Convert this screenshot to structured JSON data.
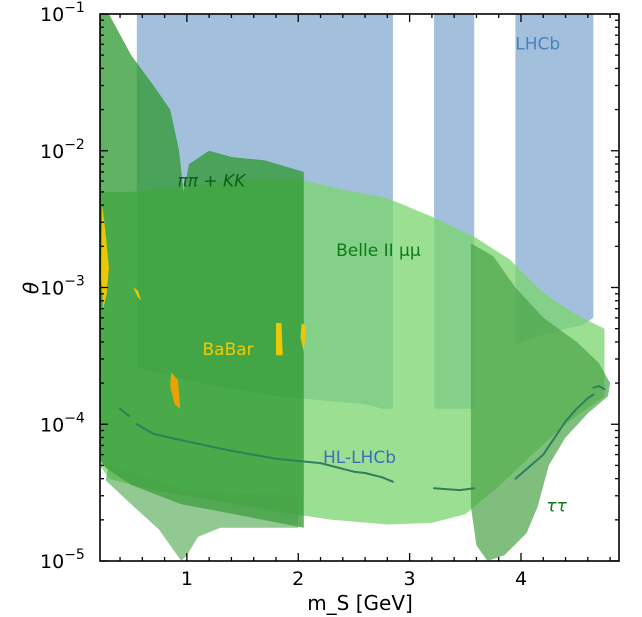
{
  "chart_data": {
    "type": "area",
    "title": "",
    "xlabel": "m_S [GeV]",
    "ylabel": "θ",
    "xlim": [
      0.22,
      4.88
    ],
    "ylim": [
      1e-05,
      0.1
    ],
    "yscale": "log",
    "x_ticks": [
      {
        "value": 1,
        "label": "1"
      },
      {
        "value": 2,
        "label": "2"
      },
      {
        "value": 3,
        "label": "3"
      },
      {
        "value": 4,
        "label": "4"
      }
    ],
    "y_ticks": [
      {
        "value": 1e-05,
        "base": "10",
        "exp": "−5"
      },
      {
        "value": 0.0001,
        "base": "10",
        "exp": "−4"
      },
      {
        "value": 0.001,
        "base": "10",
        "exp": "−3"
      },
      {
        "value": 0.01,
        "base": "10",
        "exp": "−2"
      },
      {
        "value": 0.1,
        "base": "10",
        "exp": "−1"
      }
    ],
    "regions": [
      {
        "name": "LHCb",
        "color": "#7ba5cd",
        "opacity": 0.7,
        "polygons": [
          [
            [
              0.55,
              0.1
            ],
            [
              2.85,
              0.1
            ],
            [
              2.85,
              0.00013
            ],
            [
              2.75,
              0.00013
            ],
            [
              2.6,
              0.00014
            ],
            [
              2.2,
              0.00015
            ],
            [
              1.8,
              0.00016
            ],
            [
              1.4,
              0.00018
            ],
            [
              1.0,
              0.00021
            ],
            [
              0.55,
              0.00026
            ]
          ],
          [
            [
              3.22,
              0.1
            ],
            [
              3.58,
              0.1
            ],
            [
              3.58,
              0.00013
            ],
            [
              3.22,
              0.00013
            ]
          ],
          [
            [
              3.95,
              0.1
            ],
            [
              4.65,
              0.1
            ],
            [
              4.65,
              0.0006
            ],
            [
              4.55,
              0.00053
            ],
            [
              4.4,
              0.0005
            ],
            [
              4.2,
              0.00045
            ],
            [
              3.95,
              0.00038
            ]
          ]
        ]
      },
      {
        "name": "Belle II μμ",
        "color": "#7ad66e",
        "opacity": 0.75,
        "polygons": [
          [
            [
              0.22,
              0.005
            ],
            [
              0.5,
              0.005
            ],
            [
              1.0,
              0.0055
            ],
            [
              1.5,
              0.0062
            ],
            [
              2.0,
              0.0062
            ],
            [
              2.4,
              0.0052
            ],
            [
              2.8,
              0.0045
            ],
            [
              3.2,
              0.0033
            ],
            [
              3.6,
              0.0023
            ],
            [
              3.9,
              0.0016
            ],
            [
              4.15,
              0.001
            ],
            [
              4.3,
              0.0008
            ],
            [
              4.55,
              0.0006
            ],
            [
              4.75,
              0.0005
            ],
            [
              4.75,
              0.00016
            ],
            [
              4.4,
              0.0001
            ],
            [
              4.1,
              6e-05
            ],
            [
              3.8,
              3.5e-05
            ],
            [
              3.5,
              2.2e-05
            ],
            [
              3.2,
              1.9e-05
            ],
            [
              2.8,
              1.85e-05
            ],
            [
              2.3,
              2e-05
            ],
            [
              1.8,
              2.3e-05
            ],
            [
              1.2,
              2.8e-05
            ],
            [
              0.7,
              3.3e-05
            ],
            [
              0.3,
              4e-05
            ],
            [
              0.22,
              5e-05
            ]
          ]
        ]
      },
      {
        "name": "ππ+KK",
        "color": "#2e9830",
        "opacity": 0.75,
        "polygons": [
          [
            [
              0.3,
              0.1
            ],
            [
              0.5,
              0.05
            ],
            [
              0.7,
              0.03
            ],
            [
              0.85,
              0.02
            ],
            [
              0.93,
              0.01
            ],
            [
              0.97,
              0.005
            ],
            [
              1.02,
              0.008
            ],
            [
              1.2,
              0.01
            ],
            [
              1.4,
              0.009
            ],
            [
              1.7,
              0.0085
            ],
            [
              2.05,
              0.007
            ],
            [
              2.05,
              1.75e-05
            ],
            [
              1.3,
              2.3e-05
            ],
            [
              0.95,
              2.6e-05
            ],
            [
              0.5,
              3.6e-05
            ],
            [
              0.27,
              4.8e-05
            ],
            [
              0.22,
              5.5e-05
            ],
            [
              0.22,
              0.1
            ]
          ]
        ]
      },
      {
        "name": "ττ",
        "color": "#4aa347",
        "opacity": 0.7,
        "polygons": [
          [
            [
              3.55,
              0.0021
            ],
            [
              3.75,
              0.0017
            ],
            [
              3.95,
              0.001
            ],
            [
              4.2,
              0.0006
            ],
            [
              4.5,
              0.0004
            ],
            [
              4.7,
              0.00028
            ],
            [
              4.8,
              0.0002
            ],
            [
              4.78,
              0.00016
            ],
            [
              4.6,
              0.00012
            ],
            [
              4.4,
              8e-05
            ],
            [
              4.25,
              5e-05
            ],
            [
              4.15,
              2.5e-05
            ],
            [
              4.05,
              1.6e-05
            ],
            [
              3.85,
              1.1e-05
            ],
            [
              3.7,
              1e-05
            ],
            [
              3.6,
              1.3e-05
            ],
            [
              3.55,
              2.5e-05
            ]
          ]
        ]
      },
      {
        "name": "low-mass",
        "color": "#4aa347",
        "opacity": 0.6,
        "polygons": [
          [
            [
              0.27,
              3.9e-05
            ],
            [
              0.5,
              2.6e-05
            ],
            [
              0.75,
              1.7e-05
            ],
            [
              0.85,
              1.3e-05
            ],
            [
              0.95,
              1e-05
            ],
            [
              1.0,
              1.1e-05
            ],
            [
              1.1,
              1.5e-05
            ],
            [
              1.3,
              1.75e-05
            ],
            [
              1.6,
              1.75e-05
            ],
            [
              2.0,
              1.75e-05
            ],
            [
              2.0,
              3e-05
            ],
            [
              1.5,
              3.1e-05
            ],
            [
              1.0,
              3.3e-05
            ],
            [
              0.6,
              4.2e-05
            ],
            [
              0.3,
              5e-05
            ]
          ]
        ]
      },
      {
        "name": "BaBar",
        "color": "#f5c800",
        "opacity": 0.95,
        "polygons": [
          [
            [
              0.24,
              0.004
            ],
            [
              0.27,
              0.0025
            ],
            [
              0.3,
              0.0014
            ],
            [
              0.28,
              0.0009
            ],
            [
              0.25,
              0.0007
            ],
            [
              0.23,
              0.0012
            ]
          ],
          [
            [
              0.52,
              0.001
            ],
            [
              0.56,
              0.00085
            ],
            [
              0.59,
              0.0008
            ],
            [
              0.56,
              0.00095
            ]
          ],
          [
            [
              1.8,
              0.00055
            ],
            [
              1.85,
              0.00055
            ],
            [
              1.86,
              0.00032
            ],
            [
              1.8,
              0.00032
            ]
          ],
          [
            [
              2.03,
              0.00055
            ],
            [
              2.07,
              0.00052
            ],
            [
              2.05,
              0.00034
            ],
            [
              2.02,
              0.00043
            ]
          ]
        ]
      },
      {
        "name": "BaBar-orange",
        "color": "#f5a000",
        "opacity": 0.95,
        "polygons": [
          [
            [
              0.86,
              0.00024
            ],
            [
              0.92,
              0.00021
            ],
            [
              0.94,
              0.00013
            ],
            [
              0.89,
              0.00014
            ],
            [
              0.85,
              0.00019
            ]
          ]
        ]
      }
    ],
    "lines": [
      {
        "name": "HL-LHCb",
        "color": "#2e7f5a",
        "width": 2,
        "segments": [
          [
            [
              0.4,
              0.00013
            ],
            [
              0.48,
              0.000115
            ]
          ],
          [
            [
              0.55,
              0.0001
            ],
            [
              0.7,
              8.5e-05
            ],
            [
              0.9,
              7.8e-05
            ],
            [
              1.1,
              7.2e-05
            ],
            [
              1.4,
              6.4e-05
            ],
            [
              1.8,
              5.6e-05
            ],
            [
              2.2,
              5.2e-05
            ],
            [
              2.5,
              4.5e-05
            ],
            [
              2.6,
              4.4e-05
            ],
            [
              2.75,
              4.1e-05
            ],
            [
              2.85,
              3.8e-05
            ]
          ],
          [
            [
              3.22,
              3.4e-05
            ],
            [
              3.45,
              3.3e-05
            ],
            [
              3.58,
              3.4e-05
            ]
          ],
          [
            [
              3.95,
              4e-05
            ],
            [
              4.2,
              6e-05
            ],
            [
              4.4,
              0.000105
            ],
            [
              4.5,
              0.00013
            ],
            [
              4.6,
              0.000155
            ],
            [
              4.65,
              0.000165
            ]
          ],
          [
            [
              4.65,
              0.000185
            ],
            [
              4.7,
              0.00019
            ],
            [
              4.75,
              0.00018
            ]
          ]
        ]
      }
    ],
    "labels": [
      {
        "text": "LHCb",
        "x": 4.15,
        "y": 0.055,
        "color": "#4a7fc0",
        "italic": false
      },
      {
        "text": "ππ + KK",
        "x": 1.22,
        "y": 0.0055,
        "color": "#0f5e15",
        "italic": true
      },
      {
        "text": "Belle II μμ",
        "x": 2.72,
        "y": 0.0017,
        "color": "#0e7a18",
        "italic": false
      },
      {
        "text": "BaBar",
        "x": 1.37,
        "y": 0.00032,
        "color": "#f5c800",
        "italic": false
      },
      {
        "text": "HL-LHCb",
        "x": 2.55,
        "y": 5.2e-05,
        "color": "#3a70b8",
        "italic": false
      },
      {
        "text": "ττ",
        "x": 4.32,
        "y": 2.3e-05,
        "color": "#0e7a18",
        "italic": true
      }
    ]
  }
}
